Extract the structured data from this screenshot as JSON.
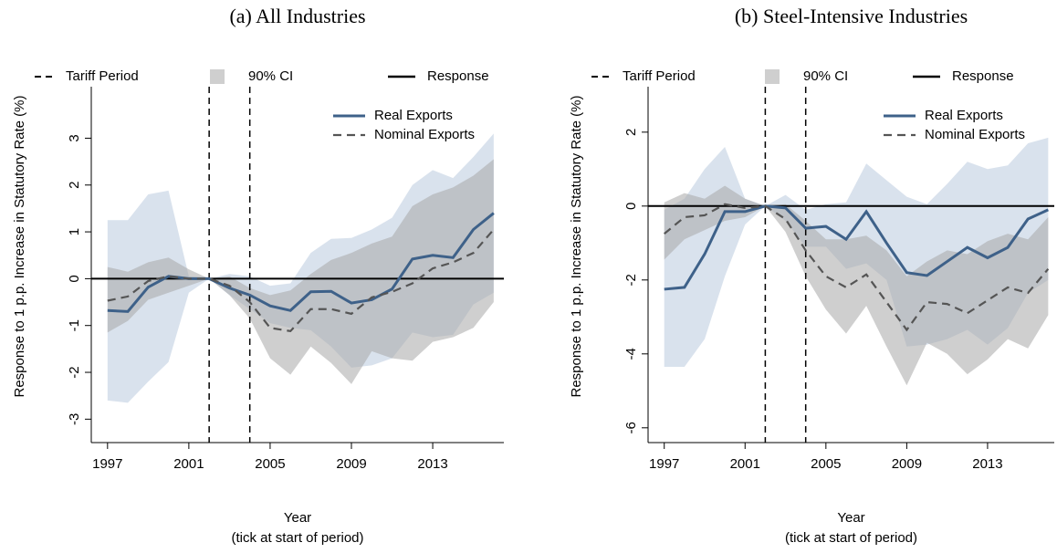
{
  "chart_data": [
    {
      "type": "line",
      "title": "(a) All Industries",
      "xlabel": "Year",
      "xlabel_note": "(tick at start of period)",
      "ylabel": "Response to 1 p.p. Increase in Statutory Rate (%)",
      "x": [
        1997,
        1998,
        1999,
        2000,
        2001,
        2002,
        2003,
        2004,
        2005,
        2006,
        2007,
        2008,
        2009,
        2010,
        2011,
        2012,
        2013,
        2014,
        2015,
        2016
      ],
      "xlim": [
        1996.2,
        2016.5
      ],
      "xticks": [
        1997,
        2001,
        2005,
        2009,
        2013
      ],
      "ylim": [
        -3.5,
        4.1
      ],
      "yticks": [
        -3,
        -2,
        -1,
        0,
        1,
        2,
        3
      ],
      "reference_line": 0,
      "tariff_period": [
        2002,
        2004
      ],
      "legend_top": [
        "Tariff Period",
        "90% CI",
        "Response"
      ],
      "series": [
        {
          "name": "Real Exports",
          "color": "#3e6189",
          "ci_color": "#c9d6e6",
          "values": [
            -0.68,
            -0.7,
            -0.18,
            0.05,
            0.0,
            0.0,
            -0.2,
            -0.35,
            -0.58,
            -0.68,
            -0.28,
            -0.27,
            -0.52,
            -0.45,
            -0.22,
            0.42,
            0.5,
            0.45,
            1.05,
            1.4
          ],
          "ci_upper": [
            1.25,
            1.25,
            1.8,
            1.88,
            0.05,
            0.0,
            0.1,
            0.05,
            -0.15,
            -0.1,
            0.55,
            0.85,
            0.87,
            1.05,
            1.3,
            2.0,
            2.32,
            2.15,
            2.6,
            3.1
          ],
          "ci_lower": [
            -2.6,
            -2.65,
            -2.2,
            -1.78,
            -0.3,
            0.0,
            -0.35,
            -0.65,
            -0.95,
            -1.05,
            -1.1,
            -1.45,
            -1.9,
            -1.85,
            -1.7,
            -1.15,
            -1.25,
            -1.2,
            -0.55,
            -0.3
          ]
        },
        {
          "name": "Nominal Exports",
          "color": "#555555",
          "dashed": true,
          "ci_color": "#a8a8a8",
          "values": [
            -0.47,
            -0.38,
            -0.05,
            0.05,
            0.0,
            0.0,
            -0.15,
            -0.5,
            -1.05,
            -1.12,
            -0.65,
            -0.65,
            -0.75,
            -0.4,
            -0.28,
            -0.1,
            0.22,
            0.35,
            0.55,
            1.05
          ],
          "ci_upper": [
            0.25,
            0.15,
            0.35,
            0.45,
            0.2,
            0.0,
            0.05,
            -0.2,
            -0.35,
            -0.25,
            0.1,
            0.4,
            0.55,
            0.75,
            0.9,
            1.55,
            1.8,
            1.95,
            2.2,
            2.55
          ],
          "ci_lower": [
            -1.15,
            -0.9,
            -0.45,
            -0.3,
            -0.15,
            0.0,
            -0.35,
            -0.85,
            -1.7,
            -2.05,
            -1.45,
            -1.8,
            -2.25,
            -1.55,
            -1.7,
            -1.75,
            -1.35,
            -1.25,
            -1.05,
            -0.5
          ]
        }
      ]
    },
    {
      "type": "line",
      "title": "(b) Steel-Intensive Industries",
      "xlabel": "Year",
      "xlabel_note": "(tick at start of period)",
      "ylabel": "Response to 1 p.p. Increase in Statutory Rate (%)",
      "x": [
        1997,
        1998,
        1999,
        2000,
        2001,
        2002,
        2003,
        2004,
        2005,
        2006,
        2007,
        2008,
        2009,
        2010,
        2011,
        2012,
        2013,
        2014,
        2015,
        2016
      ],
      "xlim": [
        1996.2,
        2016.3
      ],
      "xticks": [
        1997,
        2001,
        2005,
        2009,
        2013
      ],
      "ylim": [
        -6.4,
        3.23
      ],
      "yticks": [
        -6,
        -4,
        -2,
        0,
        2
      ],
      "reference_line": 0,
      "tariff_period": [
        2002,
        2004
      ],
      "legend_top": [
        "Tariff Period",
        "90% CI",
        "Response"
      ],
      "series": [
        {
          "name": "Real Exports",
          "color": "#3e6189",
          "ci_color": "#c9d6e6",
          "values": [
            -2.25,
            -2.2,
            -1.3,
            -0.15,
            -0.15,
            0.0,
            -0.05,
            -0.6,
            -0.55,
            -0.9,
            -0.15,
            -1.0,
            -1.8,
            -1.88,
            -1.5,
            -1.12,
            -1.4,
            -1.12,
            -0.35,
            -0.1
          ],
          "ci_upper": [
            -0.1,
            0.2,
            1.0,
            1.6,
            0.2,
            0.0,
            0.3,
            -0.1,
            0.05,
            0.1,
            1.15,
            0.7,
            0.25,
            0.05,
            0.6,
            1.2,
            1.0,
            1.1,
            1.7,
            1.85
          ],
          "ci_lower": [
            -4.35,
            -4.35,
            -3.6,
            -1.9,
            -0.5,
            0.0,
            -0.4,
            -1.1,
            -1.1,
            -1.7,
            -1.55,
            -2.0,
            -3.8,
            -3.75,
            -3.6,
            -3.35,
            -3.75,
            -3.3,
            -2.35,
            -2.0
          ]
        },
        {
          "name": "Nominal Exports",
          "color": "#555555",
          "dashed": true,
          "ci_color": "#a8a8a8",
          "values": [
            -0.75,
            -0.3,
            -0.25,
            0.05,
            -0.05,
            0.0,
            -0.35,
            -1.2,
            -1.9,
            -2.2,
            -1.85,
            -2.6,
            -3.35,
            -2.6,
            -2.65,
            -2.9,
            -2.55,
            -2.2,
            -2.35,
            -1.7
          ],
          "ci_upper": [
            0.1,
            0.35,
            0.2,
            0.55,
            0.2,
            0.0,
            0.05,
            -0.4,
            -0.9,
            -0.9,
            -0.8,
            -1.2,
            -1.9,
            -1.5,
            -1.2,
            -1.3,
            -0.95,
            -0.75,
            -0.9,
            -0.3
          ],
          "ci_lower": [
            -1.45,
            -0.9,
            -0.65,
            -0.4,
            -0.3,
            0.0,
            -0.7,
            -1.9,
            -2.8,
            -3.45,
            -2.7,
            -3.8,
            -4.85,
            -3.7,
            -4.0,
            -4.55,
            -4.15,
            -3.6,
            -3.85,
            -2.95
          ]
        }
      ]
    }
  ]
}
